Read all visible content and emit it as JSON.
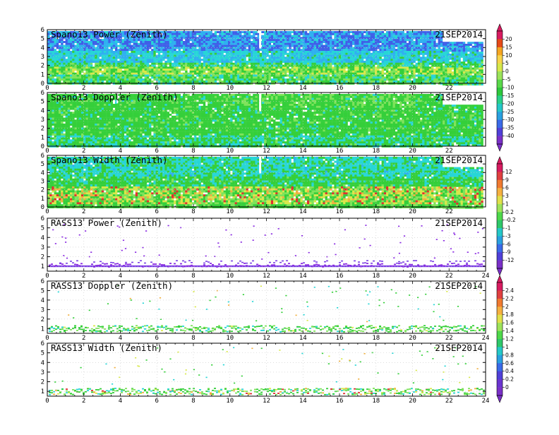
{
  "figure": {
    "date_label": "21SEP2014",
    "colors": {
      "purple": "#8a2be2",
      "violet": "#7b3fe4",
      "blue": "#3f5fe8",
      "lightblue": "#2fb0f0",
      "cyan": "#27d6d6",
      "green": "#35cf3a",
      "lightgreen": "#7ee35a",
      "yellow": "#d8e84a",
      "orange": "#f0b040",
      "red": "#e03030",
      "darkred": "#c00030"
    }
  },
  "colorbars": [
    {
      "name": "power",
      "labels": [
        "20",
        "15",
        "10",
        "5",
        "0",
        "-5",
        "-10",
        "-15",
        "-20",
        "-25",
        "-30",
        "-35",
        "-40"
      ],
      "colors": [
        "#d81b60",
        "#e64a19",
        "#f5a623",
        "#f7d44a",
        "#d6e84a",
        "#9be35a",
        "#5ad84a",
        "#2ec83c",
        "#2ad08a",
        "#25c8c8",
        "#2aa0e0",
        "#3a6ae8",
        "#5040d8",
        "#7a30c8"
      ]
    },
    {
      "name": "width",
      "labels": [
        "12",
        "9",
        "6",
        "3",
        "1",
        "0.2",
        "-0.2",
        "-1",
        "-3",
        "-6",
        "-9",
        "-12"
      ],
      "colors": [
        "#d81b60",
        "#e04040",
        "#f07a30",
        "#f5b040",
        "#e0e04a",
        "#9ee35a",
        "#4ed84a",
        "#2ec86a",
        "#25c8c8",
        "#2aa0e0",
        "#3a6ae8",
        "#5040d8",
        "#7a30c8"
      ]
    },
    {
      "name": "rass",
      "labels": [
        "2.4",
        "2.2",
        "2",
        "1.8",
        "1.6",
        "1.4",
        "1.2",
        "1",
        "0.8",
        "0.6",
        "0.4",
        "0.2",
        "0"
      ],
      "colors": [
        "#d81b60",
        "#e04040",
        "#f07a30",
        "#f5b040",
        "#e0e04a",
        "#9ee35a",
        "#4ed84a",
        "#2ec86a",
        "#25c8c8",
        "#2aa0e0",
        "#3a6ae8",
        "#5040d8",
        "#6a34d0",
        "#7a30c8"
      ]
    }
  ],
  "chart_data": [
    {
      "type": "heatmap",
      "title": "Spano13 Power (Zenith)",
      "date": "21SEP2014",
      "x_ticks": [
        "0",
        "2",
        "4",
        "6",
        "8",
        "10",
        "12",
        "14",
        "16",
        "18",
        "20",
        "22"
      ],
      "y_ticks": [
        "0",
        "1",
        "2",
        "3",
        "4",
        "5",
        "6"
      ],
      "xlim": [
        0,
        24
      ],
      "ylim": [
        0,
        6
      ],
      "colorbar": "power"
    },
    {
      "type": "heatmap",
      "title": "Spano13 Doppler (Zenith)",
      "date": "21SEP2014",
      "x_ticks": [
        "0",
        "2",
        "4",
        "6",
        "8",
        "10",
        "12",
        "14",
        "16",
        "18",
        "20",
        "22"
      ],
      "y_ticks": [
        "0",
        "1",
        "2",
        "3",
        "4",
        "5",
        "6"
      ],
      "xlim": [
        0,
        24
      ],
      "ylim": [
        0,
        6
      ],
      "colorbar": "width"
    },
    {
      "type": "heatmap",
      "title": "Spano13 Width (Zenith)",
      "date": "21SEP2014",
      "x_ticks": [
        "0",
        "2",
        "4",
        "6",
        "8",
        "10",
        "12",
        "14",
        "16",
        "18",
        "20",
        "22"
      ],
      "y_ticks": [
        "0",
        "1",
        "2",
        "3",
        "4",
        "5",
        "6"
      ],
      "xlim": [
        0,
        24
      ],
      "ylim": [
        0,
        6
      ],
      "colorbar": "width"
    },
    {
      "type": "heatmap",
      "title": "RASS13 Power (Zenith)",
      "date": "21SEP2014",
      "x_ticks": [
        "0",
        "2",
        "4",
        "6",
        "8",
        "10",
        "12",
        "14",
        "16",
        "18",
        "20",
        "22",
        "24"
      ],
      "y_ticks": [
        "1",
        "2",
        "3",
        "4",
        "5",
        "6"
      ],
      "xlim": [
        0,
        24
      ],
      "ylim": [
        0.5,
        6
      ],
      "colorbar": "width"
    },
    {
      "type": "heatmap",
      "title": "RASS13 Doppler (Zenith)",
      "date": "21SEP2014",
      "x_ticks": [
        "0",
        "2",
        "4",
        "6",
        "8",
        "10",
        "12",
        "14",
        "16",
        "18",
        "20",
        "22",
        "24"
      ],
      "y_ticks": [
        "1",
        "2",
        "3",
        "4",
        "5",
        "6"
      ],
      "xlim": [
        0,
        24
      ],
      "ylim": [
        0.5,
        6
      ],
      "colorbar": "rass"
    },
    {
      "type": "heatmap",
      "title": "RASS13 Width (Zenith)",
      "date": "21SEP2014",
      "x_ticks": [
        "0",
        "2",
        "4",
        "6",
        "8",
        "10",
        "12",
        "14",
        "16",
        "18",
        "20",
        "22",
        "24"
      ],
      "y_ticks": [
        "1",
        "2",
        "3",
        "4",
        "5",
        "6"
      ],
      "xlim": [
        0,
        24
      ],
      "ylim": [
        0.5,
        6
      ],
      "colorbar": "rass"
    }
  ]
}
